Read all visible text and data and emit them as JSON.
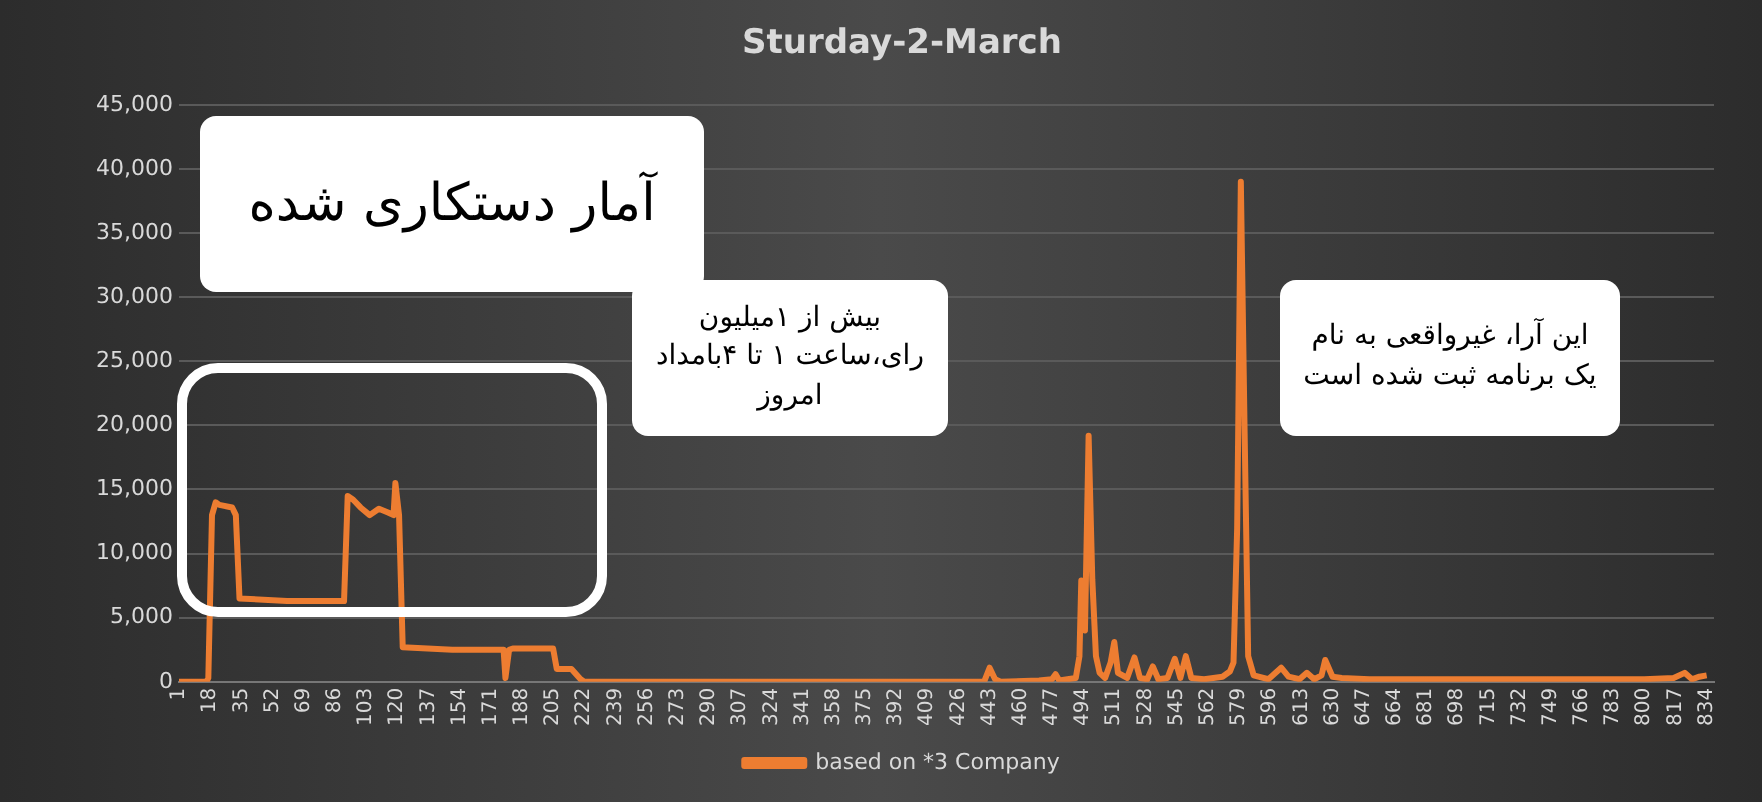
{
  "chart_data": {
    "type": "line",
    "title": "Sturday-2-March",
    "annotations": [
      "آمار دستکاری شده",
      "بیش از ۱میلیون رای،ساعت ۱ تا ۴بامداد امروز",
      "این آرا، غیرواقعی به نام یک برنامه ثبت شده است"
    ],
    "series": [
      {
        "name": "based on *3 Company",
        "color": "#ed7d31",
        "x": [
          1,
          16,
          17,
          19,
          21,
          23,
          30,
          32,
          34,
          60,
          91,
          93,
          96,
          100,
          105,
          110,
          115,
          118,
          119,
          121,
          123,
          150,
          176,
          178,
          179,
          181,
          183,
          205,
          207,
          215,
          220,
          222,
          300,
          440,
          443,
          446,
          449,
          470,
          477,
          479,
          481,
          490,
          492,
          493,
          495,
          497,
          499,
          501,
          503,
          506,
          509,
          511,
          513,
          518,
          522,
          525,
          529,
          532,
          535,
          540,
          544,
          547,
          550,
          553,
          560,
          570,
          574,
          576,
          578,
          580,
          582,
          584,
          587,
          595,
          602,
          606,
          612,
          616,
          620,
          624,
          626,
          630,
          635,
          650,
          700,
          800,
          816,
          822,
          826,
          830,
          834
        ],
        "values": [
          0,
          0,
          300,
          13000,
          14000,
          13800,
          13600,
          13000,
          6500,
          6300,
          6300,
          14500,
          14200,
          13600,
          13000,
          13500,
          13200,
          13000,
          15500,
          13000,
          2700,
          2500,
          2500,
          2500,
          300,
          2500,
          2600,
          2600,
          1000,
          1000,
          200,
          0,
          0,
          0,
          1100,
          200,
          0,
          100,
          200,
          600,
          100,
          300,
          2000,
          7900,
          4000,
          19200,
          8000,
          2000,
          700,
          300,
          1500,
          3100,
          700,
          300,
          1900,
          300,
          200,
          1200,
          200,
          300,
          1800,
          300,
          2000,
          300,
          200,
          400,
          800,
          1500,
          12000,
          39000,
          20000,
          2000,
          500,
          200,
          1100,
          400,
          200,
          700,
          200,
          500,
          1700,
          400,
          300,
          200,
          200,
          200,
          300,
          700,
          200,
          400,
          500
        ]
      }
    ],
    "xlim": [
      1,
      838
    ],
    "xticks": [
      1,
      18,
      35,
      52,
      69,
      86,
      103,
      120,
      137,
      154,
      171,
      188,
      205,
      222,
      239,
      256,
      273,
      290,
      307,
      324,
      341,
      358,
      375,
      392,
      409,
      426,
      443,
      460,
      477,
      494,
      511,
      528,
      545,
      562,
      579,
      596,
      613,
      630,
      647,
      664,
      681,
      698,
      715,
      732,
      749,
      766,
      783,
      800,
      817,
      834
    ],
    "ylim": [
      0,
      45000
    ],
    "yticks": [
      0,
      {
        "value": 5000,
        "label": "5,000"
      },
      {
        "value": 10000,
        "label": "10,000"
      },
      {
        "value": 15000,
        "label": "15,000"
      },
      {
        "value": 20000,
        "label": "20,000"
      },
      {
        "value": 25000,
        "label": "25,000"
      },
      {
        "value": 30000,
        "label": "30,000"
      },
      {
        "value": 35000,
        "label": "35,000"
      },
      {
        "value": 40000,
        "label": "40,000"
      },
      {
        "value": 45000,
        "label": "45,000"
      }
    ],
    "grid": "y",
    "legend": "bottom",
    "marker": "none",
    "line_style": "solid"
  }
}
